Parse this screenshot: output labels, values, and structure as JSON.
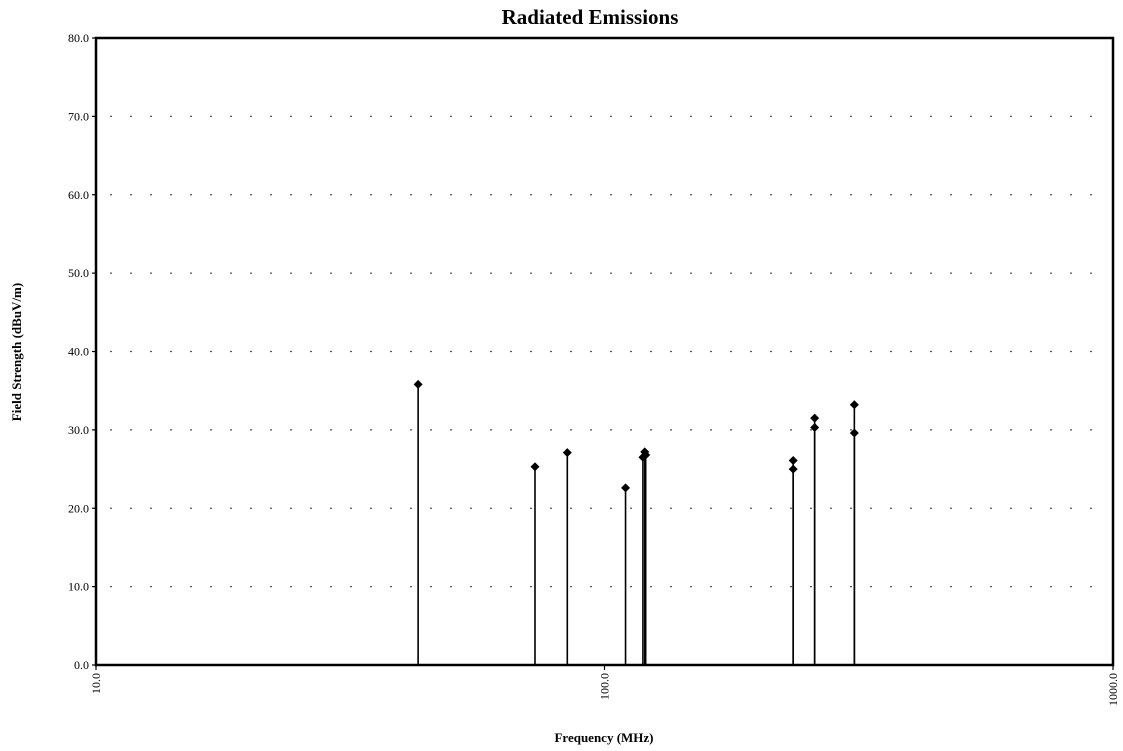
{
  "chart_data": {
    "type": "scatter",
    "marker": "diamond",
    "drop_lines": true,
    "title": "Radiated Emissions",
    "xlabel": "Frequency (MHz)",
    "ylabel": "Field Strength (dBuV/m)",
    "x_scale": "log",
    "xlim": [
      10.0,
      1000.0
    ],
    "ylim": [
      0.0,
      80.0
    ],
    "x_ticks": [
      "10.0",
      "100.0",
      "1000.0"
    ],
    "y_ticks": [
      "0.0",
      "10.0",
      "20.0",
      "30.0",
      "40.0",
      "50.0",
      "60.0",
      "70.0",
      "80.0"
    ],
    "grid": "dotted-horizontal",
    "legend": "none",
    "colors": {
      "marks": "#000000",
      "grid": "#555555"
    },
    "points": [
      {
        "x": 43.0,
        "y": 35.8
      },
      {
        "x": 73.0,
        "y": 25.3
      },
      {
        "x": 84.5,
        "y": 27.1
      },
      {
        "x": 110.0,
        "y": 22.6
      },
      {
        "x": 119.0,
        "y": 26.5
      },
      {
        "x": 120.0,
        "y": 27.2
      },
      {
        "x": 120.5,
        "y": 26.8
      },
      {
        "x": 235.0,
        "y": 26.1
      },
      {
        "x": 235.0,
        "y": 25.0
      },
      {
        "x": 259.0,
        "y": 31.5
      },
      {
        "x": 259.0,
        "y": 30.3
      },
      {
        "x": 310.0,
        "y": 33.2
      },
      {
        "x": 310.0,
        "y": 29.6
      }
    ]
  }
}
